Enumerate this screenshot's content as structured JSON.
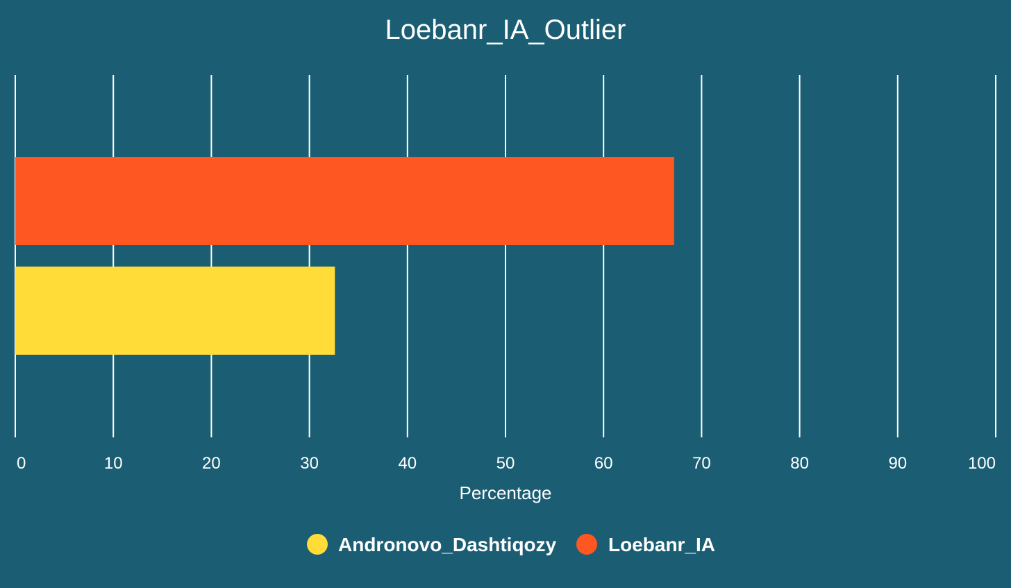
{
  "chart_data": {
    "type": "bar",
    "orientation": "horizontal",
    "title": "Loebanr_IA_Outlier",
    "xlabel": "Percentage",
    "ylabel": "",
    "xlim": [
      0,
      100
    ],
    "x_ticks": [
      0,
      10,
      20,
      30,
      40,
      50,
      60,
      70,
      80,
      90,
      100
    ],
    "grid": "vertical",
    "legend_position": "bottom",
    "background_color": "#1b5e73",
    "series": [
      {
        "name": "Andronovo_Dashtiqozy",
        "value": 32.6,
        "color": "#ffdc38"
      },
      {
        "name": "Loebanr_IA",
        "value": 67.2,
        "color": "#ff5722"
      }
    ]
  }
}
